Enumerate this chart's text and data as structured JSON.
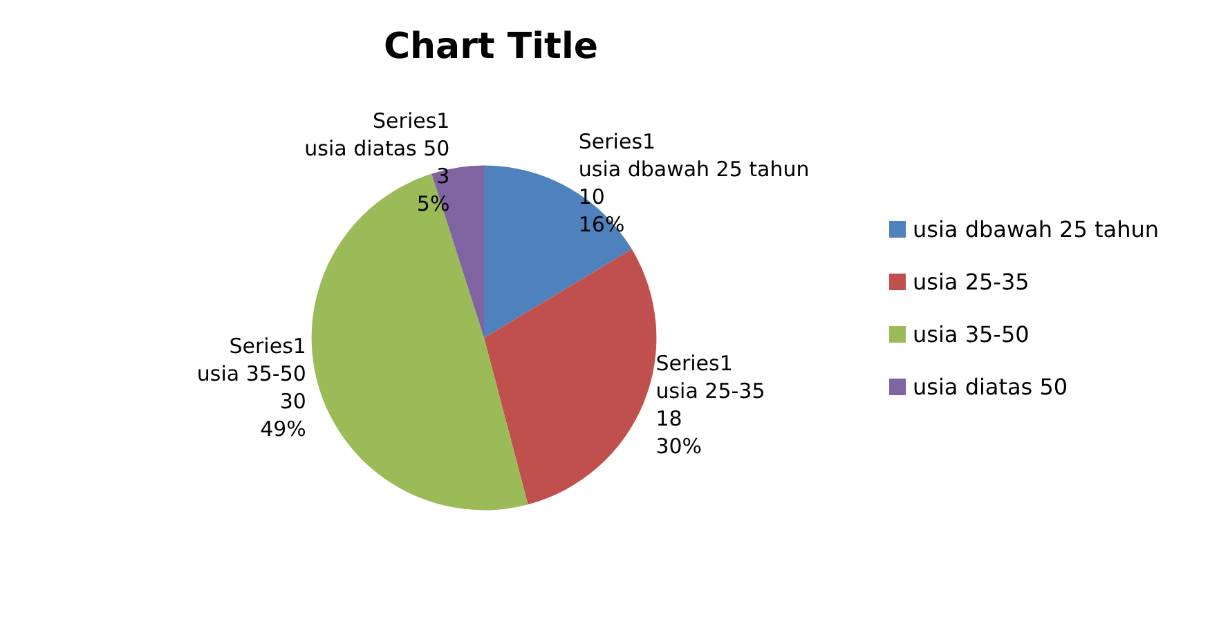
{
  "chart_data": {
    "type": "pie",
    "title": "Chart Title",
    "categories": [
      "usia dbawah 25 tahun",
      "usia 25-35",
      "usia 35-50",
      "usia diatas 50"
    ],
    "series": [
      {
        "name": "Series1",
        "values": [
          10,
          18,
          30,
          3
        ]
      }
    ],
    "colors": [
      "#4f81bd",
      "#c0504d",
      "#9bbb59",
      "#8064a2"
    ],
    "data_labels": true,
    "value_labels": [
      "16%",
      "30%",
      "49%",
      "5%"
    ],
    "legend": "right"
  }
}
